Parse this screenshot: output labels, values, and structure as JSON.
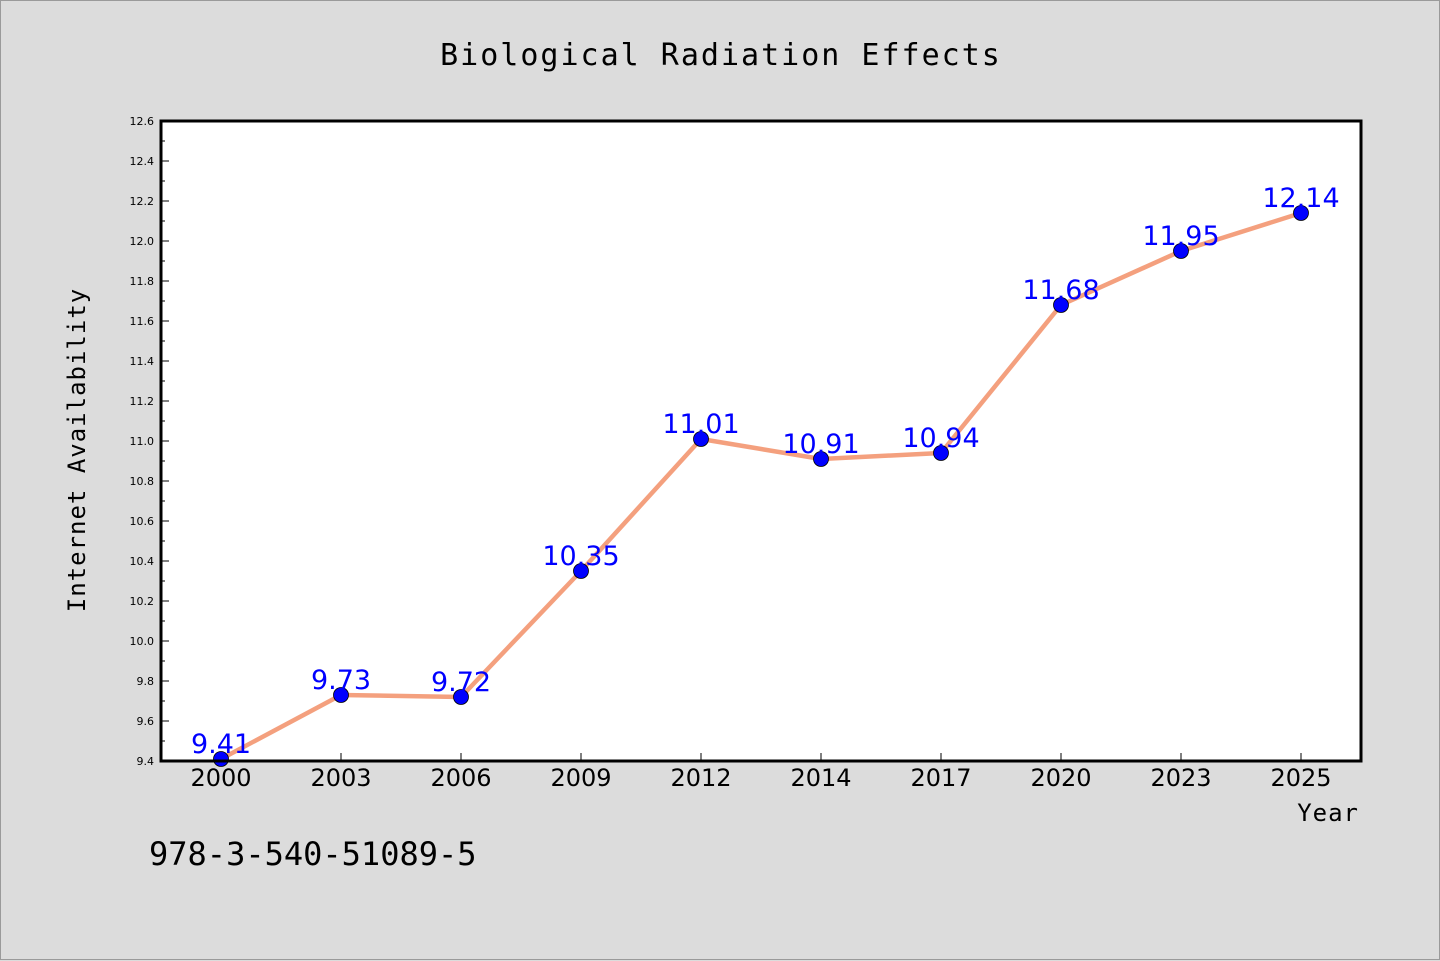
{
  "chart_data": {
    "type": "line",
    "title": "Biological Radiation Effects",
    "xlabel": "Year",
    "ylabel": "Internet Availability",
    "categories": [
      "2000",
      "2003",
      "2006",
      "2009",
      "2012",
      "2014",
      "2017",
      "2020",
      "2023",
      "2025"
    ],
    "series": [
      {
        "values": [
          9.41,
          9.73,
          9.72,
          10.35,
          11.01,
          10.91,
          10.94,
          11.68,
          11.95,
          12.14
        ],
        "labels": [
          "9.41",
          "9.73",
          "9.72",
          "10.35",
          "11.01",
          "10.91",
          "10.94",
          "11.68",
          "11.95",
          "12.14"
        ],
        "line_color": "#f4a07e",
        "marker_color": "#0000ff"
      }
    ],
    "ylim": [
      9.4,
      12.6
    ],
    "yticks": [
      "9.4",
      "9.6",
      "9.8",
      "10.0",
      "10.2",
      "10.4",
      "10.6",
      "10.8",
      "11.0",
      "11.2",
      "11.4",
      "11.6",
      "11.8",
      "12.0",
      "12.2",
      "12.4",
      "12.6"
    ],
    "grid": false,
    "legend": "none"
  },
  "footer": {
    "text": "978-3-540-51089-5"
  },
  "colors": {
    "background": "#dcdcdc",
    "plot_background": "#ffffff",
    "line": "#f4a07e",
    "marker": "#0000ff",
    "data_label": "#0000ff"
  }
}
